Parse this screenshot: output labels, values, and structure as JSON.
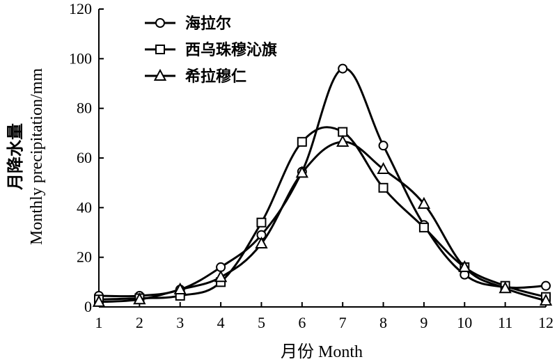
{
  "chart_data": {
    "type": "line",
    "x": [
      1,
      2,
      3,
      4,
      5,
      6,
      7,
      8,
      9,
      10,
      11,
      12
    ],
    "xlabel": "月份 Month",
    "ylabel_cn": "月降水量",
    "ylabel_en": "Monthly precipitation/mm",
    "xlim": [
      1,
      12
    ],
    "ylim": [
      0,
      120
    ],
    "yticks": [
      0,
      20,
      40,
      60,
      80,
      100,
      120
    ],
    "xticks": [
      1,
      2,
      3,
      4,
      5,
      6,
      7,
      8,
      9,
      10,
      11,
      12
    ],
    "grid": false,
    "legend_position": "top-left",
    "series": [
      {
        "name": "海拉尔",
        "marker": "circle",
        "values": [
          4.5,
          4.5,
          7,
          16,
          29,
          54.5,
          96,
          65,
          33,
          13,
          8,
          8.5
        ]
      },
      {
        "name": "西乌珠穆沁旗",
        "marker": "square",
        "values": [
          3,
          3.5,
          4.5,
          10,
          34,
          66.5,
          70.5,
          48,
          32,
          16,
          8.5,
          4
        ]
      },
      {
        "name": "希拉穆仁",
        "marker": "triangle",
        "values": [
          2,
          3,
          7,
          12,
          25.5,
          54,
          66.5,
          55.5,
          41.5,
          16,
          7.5,
          2.5
        ]
      }
    ]
  }
}
